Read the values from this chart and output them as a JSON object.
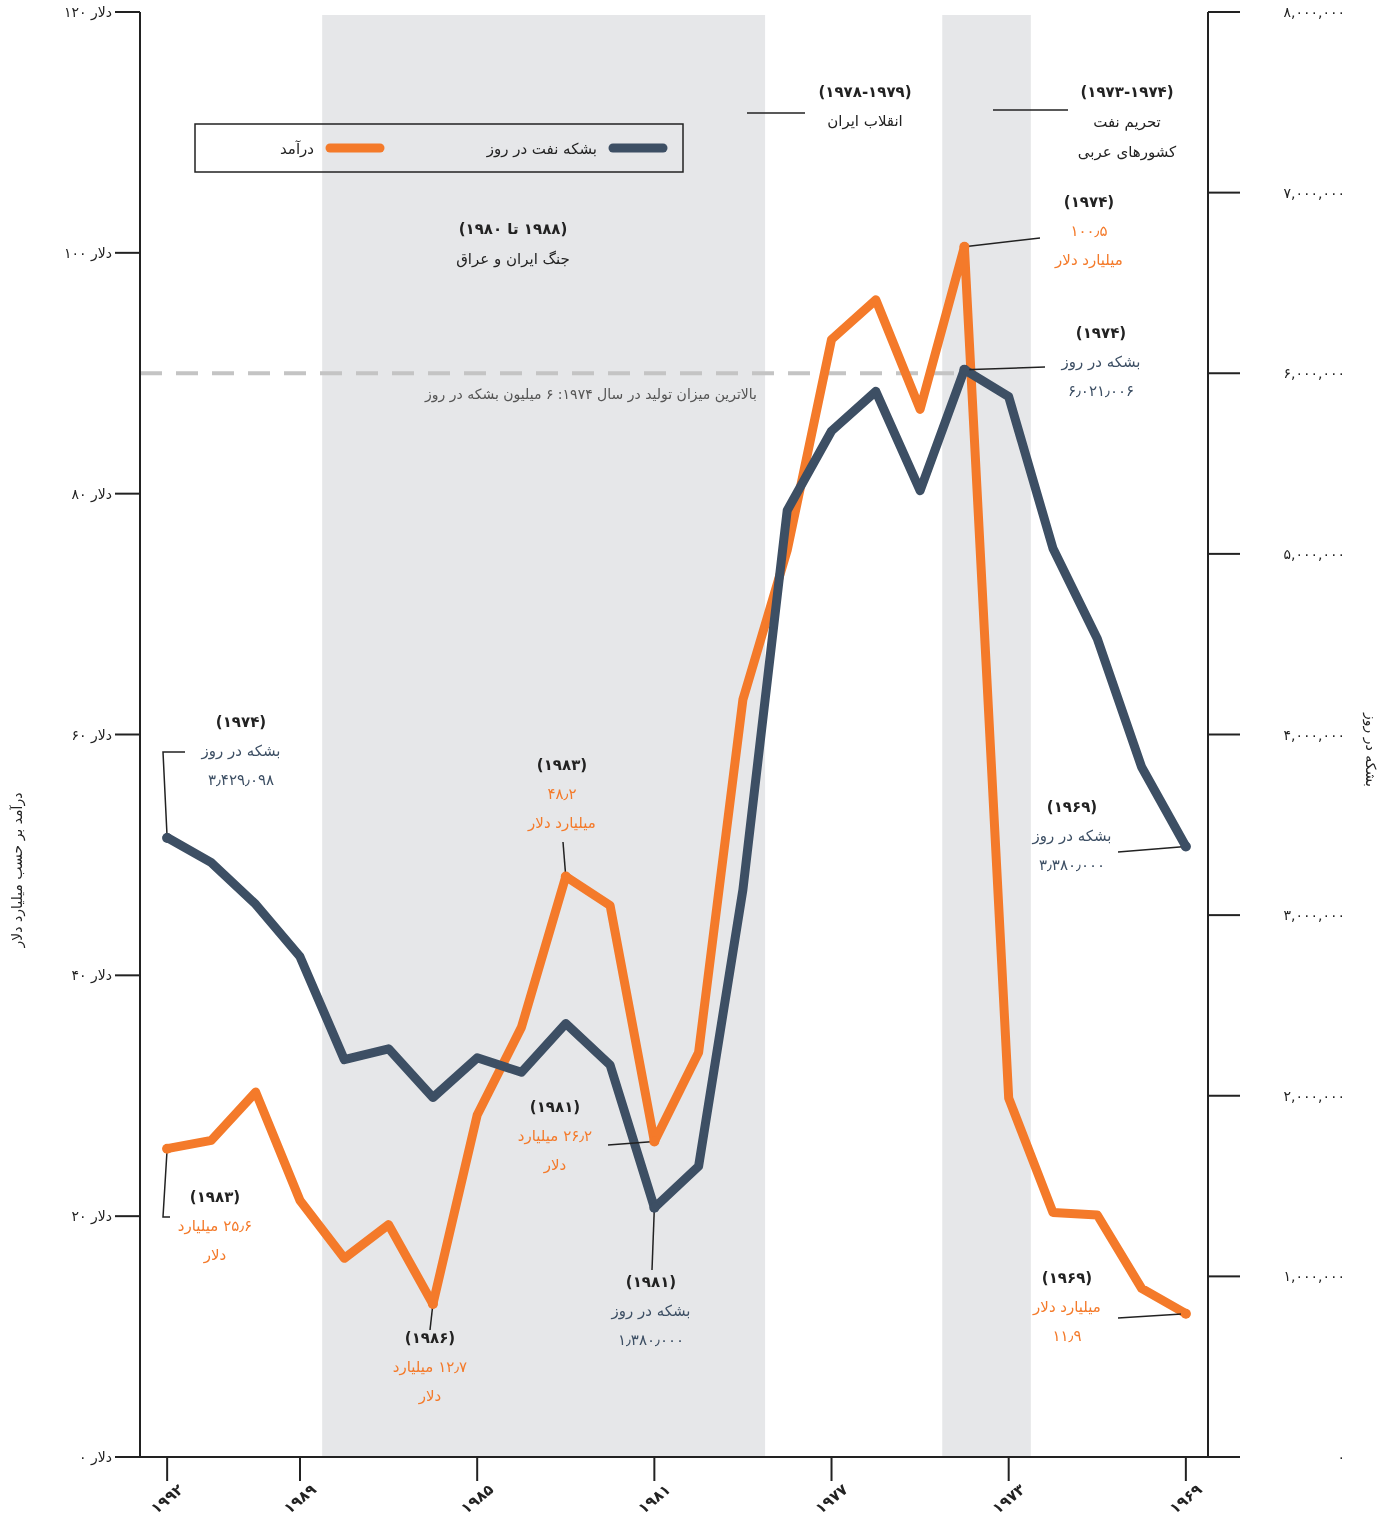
{
  "chart_data": {
    "type": "line",
    "x": [
      1992,
      1991,
      1990,
      1989,
      1988,
      1987,
      1986,
      1985,
      1984,
      1983,
      1982,
      1981,
      1980,
      1979,
      1978,
      1977,
      1976,
      1975,
      1974,
      1973,
      1972,
      1971,
      1970,
      1969
    ],
    "series": [
      {
        "name": "درآمد",
        "color": "#f47a2a",
        "axis": "y",
        "values": [
          25.6,
          26.3,
          30.3,
          21.3,
          16.5,
          19.3,
          12.7,
          28.4,
          35.7,
          48.2,
          45.8,
          26.2,
          33.6,
          62.9,
          75.3,
          92.8,
          96.1,
          87.0,
          100.5,
          29.8,
          20.3,
          20.1,
          14.0,
          11.9
        ]
      },
      {
        "name": "بشکه نفت در روز",
        "color": "#3d4f64",
        "axis": "y2",
        "values": [
          3430000,
          3290000,
          3060000,
          2770000,
          2200000,
          2260000,
          1990000,
          2210000,
          2130000,
          2400000,
          2170000,
          1380000,
          1610000,
          3140000,
          5240000,
          5680000,
          5900000,
          5350000,
          6020000,
          5870000,
          5030000,
          4530000,
          3820000,
          3380000
        ]
      }
    ],
    "xlim": [
      1992.5,
      1968.5
    ],
    "xticks": [
      {
        "value": 1992,
        "label": "۱۹۹۲"
      },
      {
        "value": 1989,
        "label": "۱۹۸۹"
      },
      {
        "value": 1985,
        "label": "۱۹۸۵"
      },
      {
        "value": 1981,
        "label": "۱۹۸۱"
      },
      {
        "value": 1977,
        "label": "۱۹۷۷"
      },
      {
        "value": 1973,
        "label": "۱۹۷۳"
      },
      {
        "value": 1969,
        "label": "۱۹۶۹"
      }
    ],
    "ylim": [
      0,
      120
    ],
    "yticks": [
      {
        "value": 0,
        "label": "۰ دلار"
      },
      {
        "value": 20,
        "label": "۲۰ دلار"
      },
      {
        "value": 40,
        "label": "۴۰ دلار"
      },
      {
        "value": 60,
        "label": "۶۰ دلار"
      },
      {
        "value": 80,
        "label": "۸۰ دلار"
      },
      {
        "value": 100,
        "label": "۱۰۰ دلار"
      },
      {
        "value": 120,
        "label": "۱۲۰ دلار"
      }
    ],
    "y2lim": [
      0,
      8000000
    ],
    "y2ticks": [
      {
        "value": 0,
        "label": "۰"
      },
      {
        "value": 1000000,
        "label": "۱,۰۰۰,۰۰۰"
      },
      {
        "value": 2000000,
        "label": "۲,۰۰۰,۰۰۰"
      },
      {
        "value": 3000000,
        "label": "۳,۰۰۰,۰۰۰"
      },
      {
        "value": 4000000,
        "label": "۴,۰۰۰,۰۰۰"
      },
      {
        "value": 5000000,
        "label": "۵,۰۰۰,۰۰۰"
      },
      {
        "value": 6000000,
        "label": "۶,۰۰۰,۰۰۰"
      },
      {
        "value": 7000000,
        "label": "۷,۰۰۰,۰۰۰"
      },
      {
        "value": 8000000,
        "label": "۸,۰۰۰,۰۰۰"
      }
    ],
    "ylabel": "درآمد بر حسب میلیارد دلار",
    "y2label": "بشکه در روز",
    "bands": [
      {
        "axis": "x",
        "from": 1988.5,
        "to": 1978.5,
        "label": "(۱۹۸۸ تا ۱۹۸۰)\nجنگ ایران و عراق",
        "color": "#e6e7e9"
      },
      {
        "axis": "x",
        "from": 1974.5,
        "to": 1972.5,
        "label": "(۱۹۷۳-۱۹۷۴)\nتحریم نفت\nکشورهای عربی",
        "color": "#e6e7e9"
      }
    ],
    "ref_lines": [
      {
        "axis": "y2",
        "value": 6000000,
        "color": "#c4c4c4",
        "line_style": "dashed"
      }
    ],
    "annotations": [
      {
        "text": "(۱۹۷۴)\nبشکه در روز\n۳٫۴۲۹٫۰۹۸",
        "x": 1992,
        "y": 51.4
      },
      {
        "text": "(۱۹۸۳)\n۲۵٫۶ میلیارد\nدلار",
        "x": 1992,
        "y": 25.6
      },
      {
        "text": "(۱۹۸۶)\n۱۲٫۷ میلیارد\nدلار",
        "x": 1986,
        "y": 12.7
      },
      {
        "text": "(۱۹۸۳)\n۴۸٫۲\nمیلیارد دلار",
        "x": 1983,
        "y": 48.2
      },
      {
        "text": "(۱۹۸۱)\n۲۶٫۲ میلیارد\nدلار",
        "x": 1981,
        "y": 26.2
      },
      {
        "text": "(۱۹۸۱)\nبشکه در روز\n۱٫۳۸۰٫۰۰۰",
        "x": 1981,
        "y": 20.7
      },
      {
        "text": "(۱۹۷۴)\n۱۰۰٫۵\nمیلیارد دلار",
        "x": 1974,
        "y": 100.5
      },
      {
        "text": "(۱۹۷۴)\nبشکه در روز\n۶٫۰۲۱٫۰۰۶",
        "x": 1974,
        "y": 90.3
      },
      {
        "text": "(۱۹۶۹)\nبشکه در روز\n۳٫۳۸۰٫۰۰۰",
        "x": 1969,
        "y": 50.7
      },
      {
        "text": "(۱۹۶۹)\nمیلیارد دلار\n۱۱٫۹",
        "x": 1969,
        "y": 11.9
      },
      "(۱۹۷۸-۱۹۷۹)\nانقلاب ایران",
      "بالاترین میزان تولید در سال ۱۹۷۴: ۶ میلیون بشکه در روز"
    ],
    "legend": "top left",
    "marker": "none",
    "line_style": "solid"
  }
}
